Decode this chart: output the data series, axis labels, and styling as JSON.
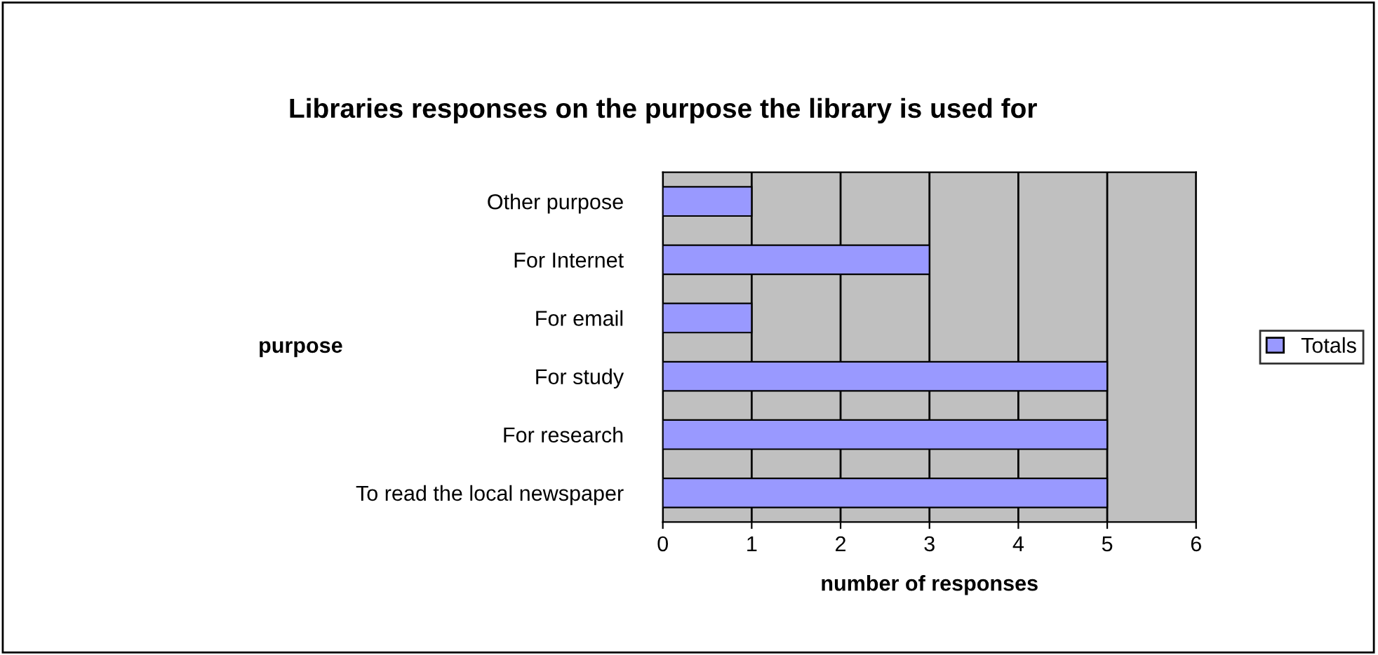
{
  "chart_data": {
    "type": "bar",
    "orientation": "horizontal",
    "title": "Libraries responses on the purpose the library is used for",
    "xlabel": "number of responses",
    "ylabel": "purpose",
    "categories": [
      "Other purpose",
      "For Internet",
      "For email",
      "For study",
      "For research",
      "To read the local newspaper"
    ],
    "series": [
      {
        "name": "Totals",
        "color": "#9999ff",
        "values": [
          1,
          3,
          1,
          5,
          5,
          5
        ]
      }
    ],
    "xlim": [
      0,
      6
    ],
    "xticks": [
      0,
      1,
      2,
      3,
      4,
      5,
      6
    ],
    "grid": "x",
    "legend": "right"
  }
}
